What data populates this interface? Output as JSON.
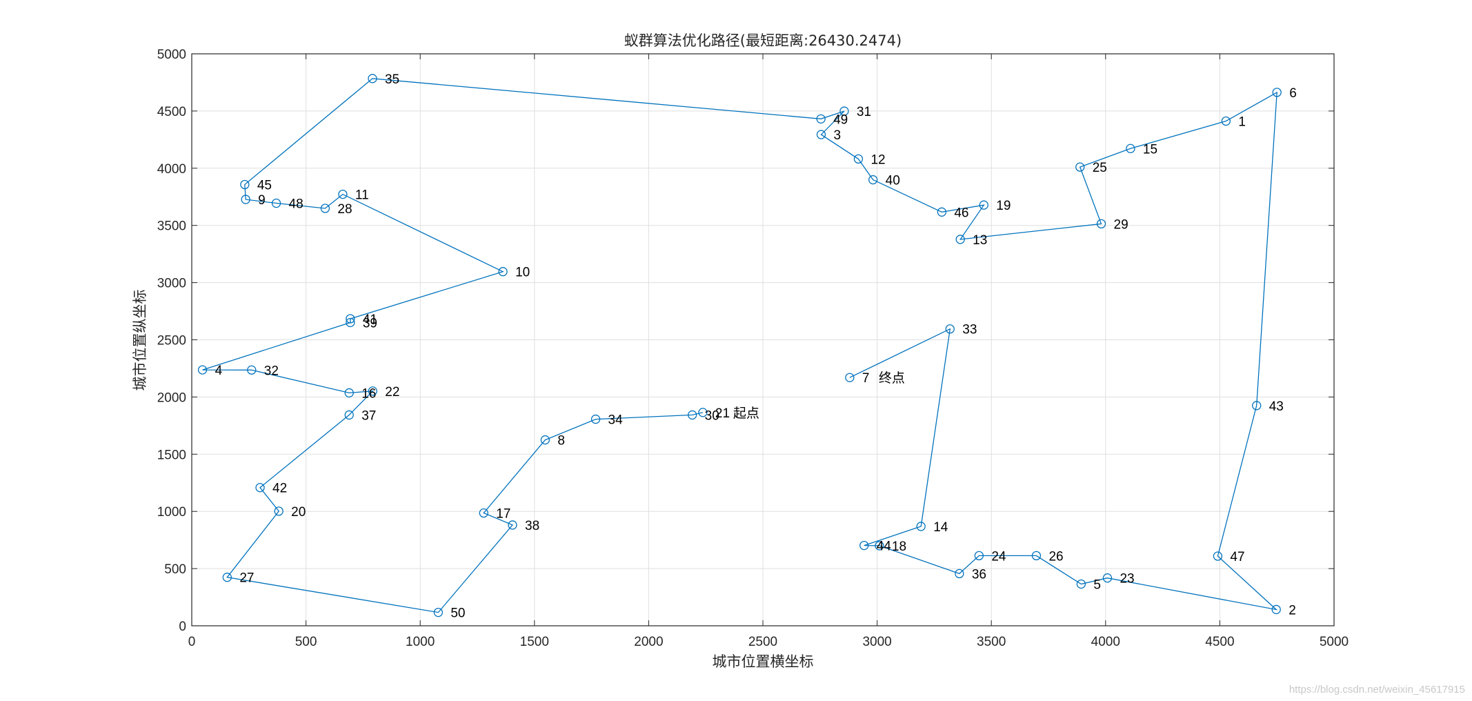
{
  "chart_data": {
    "type": "line",
    "title": "蚁群算法优化路径(最短距离:26430.2474)",
    "xlabel": "城市位置横坐标",
    "ylabel": "城市位置纵坐标",
    "xlim": [
      0,
      5000
    ],
    "ylim": [
      0,
      5000
    ],
    "xticks": [
      0,
      500,
      1000,
      1500,
      2000,
      2500,
      3000,
      3500,
      4000,
      4500,
      5000
    ],
    "yticks": [
      0,
      500,
      1000,
      1500,
      2000,
      2500,
      3000,
      3500,
      4000,
      4500,
      5000
    ],
    "grid": true,
    "color": "#0072BD",
    "start_label": "起点",
    "end_label": "终点",
    "cities": [
      {
        "id": "1",
        "x": 4527,
        "y": 4412
      },
      {
        "id": "2",
        "x": 4747,
        "y": 142
      },
      {
        "id": "3",
        "x": 2755,
        "y": 4294
      },
      {
        "id": "4",
        "x": 47,
        "y": 2237
      },
      {
        "id": "5",
        "x": 3893,
        "y": 365
      },
      {
        "id": "6",
        "x": 4750,
        "y": 4663
      },
      {
        "id": "7",
        "x": 2880,
        "y": 2170
      },
      {
        "id": "8",
        "x": 1547,
        "y": 1625
      },
      {
        "id": "9",
        "x": 236,
        "y": 3727
      },
      {
        "id": "10",
        "x": 1362,
        "y": 3096
      },
      {
        "id": "11",
        "x": 661,
        "y": 3772
      },
      {
        "id": "12",
        "x": 2918,
        "y": 4081
      },
      {
        "id": "13",
        "x": 3364,
        "y": 3378
      },
      {
        "id": "14",
        "x": 3192,
        "y": 869
      },
      {
        "id": "15",
        "x": 4109,
        "y": 4172
      },
      {
        "id": "16",
        "x": 689,
        "y": 2036
      },
      {
        "id": "17",
        "x": 1278,
        "y": 986
      },
      {
        "id": "18",
        "x": 3010,
        "y": 700
      },
      {
        "id": "19",
        "x": 3467,
        "y": 3678
      },
      {
        "id": "20",
        "x": 381,
        "y": 1002
      },
      {
        "id": "21",
        "x": 2237,
        "y": 1865
      },
      {
        "id": "22",
        "x": 792,
        "y": 2052
      },
      {
        "id": "23",
        "x": 4008,
        "y": 418
      },
      {
        "id": "24",
        "x": 3446,
        "y": 613
      },
      {
        "id": "25",
        "x": 3888,
        "y": 4010
      },
      {
        "id": "26",
        "x": 3697,
        "y": 613
      },
      {
        "id": "27",
        "x": 155,
        "y": 424
      },
      {
        "id": "28",
        "x": 584,
        "y": 3649
      },
      {
        "id": "29",
        "x": 3981,
        "y": 3514
      },
      {
        "id": "30",
        "x": 2191,
        "y": 1843
      },
      {
        "id": "31",
        "x": 2856,
        "y": 4499
      },
      {
        "id": "32",
        "x": 262,
        "y": 2236
      },
      {
        "id": "33",
        "x": 3319,
        "y": 2595
      },
      {
        "id": "34",
        "x": 1768,
        "y": 1806
      },
      {
        "id": "35",
        "x": 791,
        "y": 4784
      },
      {
        "id": "36",
        "x": 3360,
        "y": 456
      },
      {
        "id": "37",
        "x": 689,
        "y": 1843
      },
      {
        "id": "38",
        "x": 1404,
        "y": 881
      },
      {
        "id": "39",
        "x": 694,
        "y": 2651
      },
      {
        "id": "40",
        "x": 2982,
        "y": 3899
      },
      {
        "id": "41",
        "x": 694,
        "y": 2684
      },
      {
        "id": "42",
        "x": 299,
        "y": 1208
      },
      {
        "id": "43",
        "x": 4661,
        "y": 1925
      },
      {
        "id": "44",
        "x": 2943,
        "y": 702
      },
      {
        "id": "45",
        "x": 232,
        "y": 3857
      },
      {
        "id": "46",
        "x": 3283,
        "y": 3617
      },
      {
        "id": "47",
        "x": 4491,
        "y": 609
      },
      {
        "id": "48",
        "x": 370,
        "y": 3694
      },
      {
        "id": "49",
        "x": 2754,
        "y": 4431
      },
      {
        "id": "50",
        "x": 1079,
        "y": 117
      }
    ],
    "route": [
      "21",
      "30",
      "34",
      "8",
      "17",
      "38",
      "50",
      "27",
      "20",
      "42",
      "37",
      "22",
      "16",
      "32",
      "4",
      "39",
      "41",
      "10",
      "11",
      "28",
      "48",
      "9",
      "45",
      "35",
      "49",
      "31",
      "3",
      "12",
      "40",
      "46",
      "19",
      "13",
      "29",
      "25",
      "15",
      "1",
      "6",
      "43",
      "47",
      "2",
      "23",
      "5",
      "26",
      "24",
      "36",
      "18",
      "44",
      "14",
      "33",
      "7"
    ]
  },
  "watermark": "https://blog.csdn.net/weixin_45617915"
}
